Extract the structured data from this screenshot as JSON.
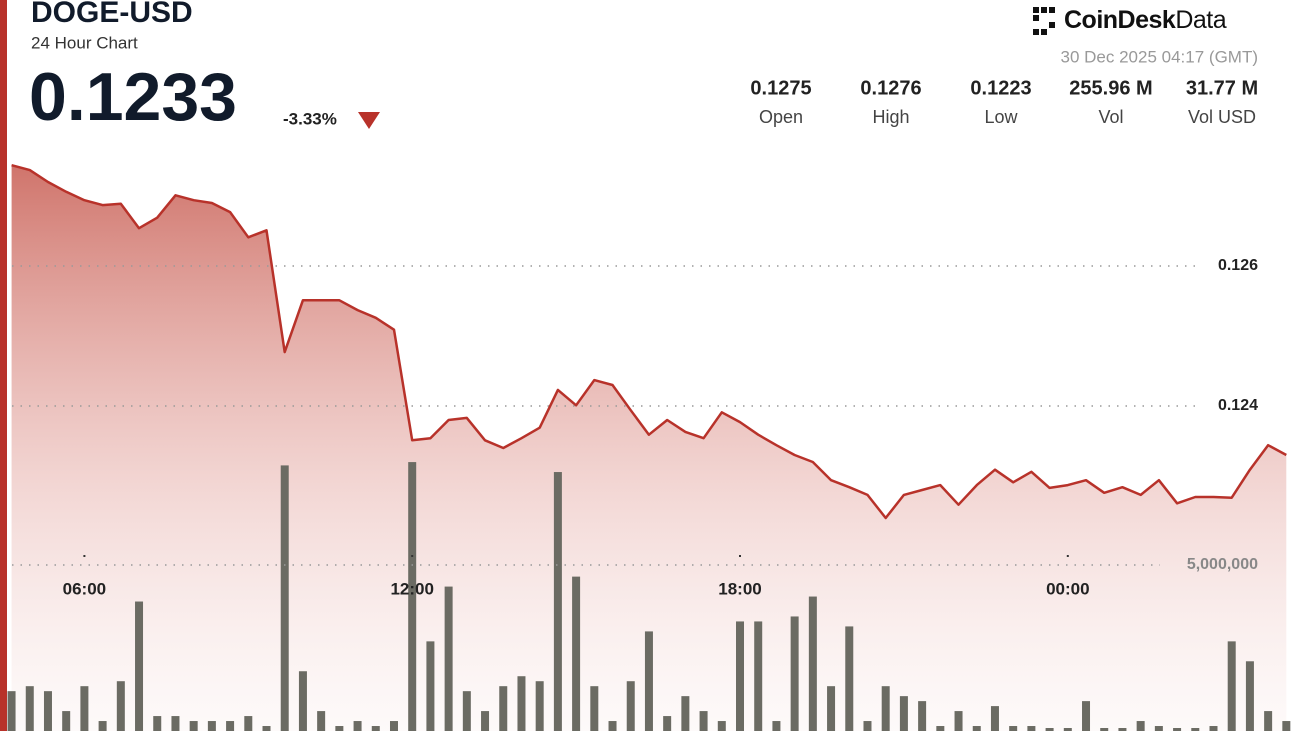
{
  "header": {
    "title": "DOGE-USD",
    "subtitle": "24 Hour Chart",
    "price": "0.1233",
    "change": "-3.33%",
    "brand": "CoinDesk",
    "brand_suffix": "Data",
    "timestamp": "30 Dec 2025 04:17 (GMT)",
    "stats": [
      {
        "value": "0.1275",
        "label": "Open"
      },
      {
        "value": "0.1276",
        "label": "High"
      },
      {
        "value": "0.1223",
        "label": "Low"
      },
      {
        "value": "255.96 M",
        "label": "Vol"
      },
      {
        "value": "31.77 M",
        "label": "Vol USD"
      }
    ]
  },
  "chart_data": {
    "type": "line",
    "x": [
      280,
      300,
      320,
      340,
      360,
      380,
      400,
      420,
      440,
      460,
      480,
      500,
      520,
      540,
      560,
      580,
      600,
      620,
      640,
      660,
      680,
      700,
      720,
      740,
      760,
      780,
      800,
      820,
      840,
      860,
      880,
      900,
      920,
      940,
      960,
      980,
      1000,
      1020,
      1040,
      1060,
      1080,
      1100,
      1120,
      1140,
      1160,
      1180,
      1200,
      1220,
      1240,
      1260,
      1280,
      1300,
      1320,
      1340,
      1360,
      1380,
      1400,
      1420,
      1440,
      1460,
      1480,
      1500,
      1520,
      1540,
      1560,
      1580,
      1600,
      1620,
      1640,
      1660,
      1680
    ],
    "xlim": [
      275,
      1695
    ],
    "xticks": [
      {
        "value": 360,
        "label": "06:00"
      },
      {
        "value": 720,
        "label": "12:00"
      },
      {
        "value": 1080,
        "label": "18:00"
      },
      {
        "value": 1440,
        "label": "00:00"
      }
    ],
    "ylim": [
      0.122,
      0.128
    ],
    "yticks": [
      0.124,
      0.126
    ],
    "y2lim": [
      0,
      10000000
    ],
    "y2ticks": [
      {
        "value": 5000000,
        "label": "5,000,000"
      }
    ],
    "grid": true,
    "series": [
      {
        "type": "line",
        "color": "#b8322a",
        "values": [
          0.12744,
          0.12737,
          0.1272,
          0.12706,
          0.12694,
          0.12687,
          0.12689,
          0.12654,
          0.12669,
          0.12701,
          0.12694,
          0.1269,
          0.12677,
          0.12641,
          0.12651,
          0.12477,
          0.12551,
          0.12551,
          0.12551,
          0.12537,
          0.12526,
          0.12509,
          0.12351,
          0.12354,
          0.1238,
          0.12383,
          0.12351,
          0.1234,
          0.12354,
          0.12369,
          0.12423,
          0.12401,
          0.12437,
          0.1243,
          0.12394,
          0.12359,
          0.1238,
          0.12363,
          0.12354,
          0.12391,
          0.12377,
          0.12359,
          0.12344,
          0.1233,
          0.1232,
          0.12294,
          0.12284,
          0.12273,
          0.1224,
          0.12273,
          0.1228,
          0.12287,
          0.12259,
          0.12287,
          0.12309,
          0.12291,
          0.12306,
          0.12283,
          0.12287,
          0.12294,
          0.12276,
          0.12284,
          0.12273,
          0.12294,
          0.12261,
          0.1227,
          0.1227,
          0.12269,
          0.12309,
          0.12344,
          0.1233
        ]
      },
      {
        "type": "bar",
        "axis": "y2",
        "color": "#6b6b63",
        "values": [
          1200000,
          1350000,
          1200000,
          600000,
          1350000,
          300000,
          1500000,
          3900000,
          450000,
          450000,
          300000,
          300000,
          300000,
          450000,
          150000,
          8000000,
          1800000,
          600000,
          150000,
          300000,
          150000,
          300000,
          8100000,
          2700000,
          4350000,
          1200000,
          600000,
          1350000,
          1650000,
          1500000,
          7800000,
          4650000,
          1350000,
          300000,
          1500000,
          3000000,
          450000,
          1050000,
          600000,
          300000,
          3300000,
          3300000,
          300000,
          3450000,
          4050000,
          1350000,
          3150000,
          300000,
          1350000,
          1050000,
          900000,
          150000,
          600000,
          150000,
          750000,
          150000,
          150000,
          90000,
          90000,
          900000,
          90000,
          90000,
          300000,
          150000,
          90000,
          90000,
          150000,
          2700000,
          2100000,
          600000,
          300000
        ]
      }
    ]
  }
}
